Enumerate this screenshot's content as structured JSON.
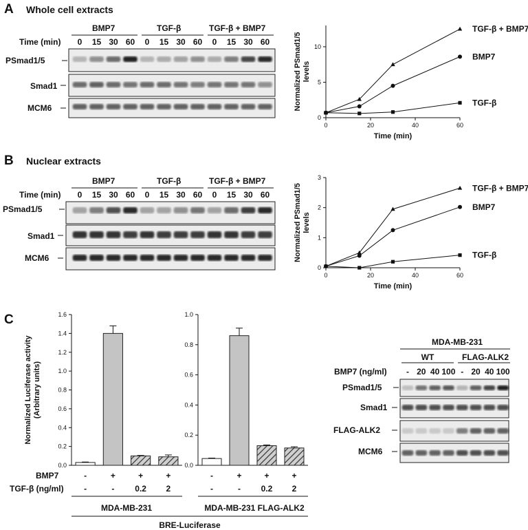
{
  "panel_a": {
    "letter": "A",
    "title": "Whole cell extracts",
    "time_label": "Time (min)",
    "groups": [
      "BMP7",
      "TGF-β",
      "TGF-β + BMP7"
    ],
    "lanes": [
      "0",
      "15",
      "30",
      "60",
      "0",
      "15",
      "30",
      "60",
      "0",
      "15",
      "30",
      "60"
    ],
    "rows": [
      "PSmad1/5",
      "Smad1",
      "MCM6"
    ]
  },
  "panel_b": {
    "letter": "B",
    "title": "Nuclear extracts",
    "time_label": "Time (min)",
    "groups": [
      "BMP7",
      "TGF-β",
      "TGF-β + BMP7"
    ],
    "lanes": [
      "0",
      "15",
      "30",
      "60",
      "0",
      "15",
      "30",
      "60",
      "0",
      "15",
      "30",
      "60"
    ],
    "rows": [
      "PSmad1/5",
      "Smad1",
      "MCM6"
    ]
  },
  "panel_c": {
    "letter": "C",
    "blot": {
      "cell_line": "MDA-MB-231",
      "wt_label": "WT",
      "flag_label": "FLAG-ALK2",
      "dose_label": "BMP7 (ng/ml)",
      "lanes": [
        "-",
        "20",
        "40",
        "100",
        "-",
        "20",
        "40",
        "100"
      ],
      "rows": [
        "PSmad1/5",
        "Smad1",
        "FLAG-ALK2",
        "MCM6"
      ]
    },
    "table": {
      "bmp7_label": "BMP7",
      "tgf_label": "TGF-β (ng/ml)",
      "bmp7_values": [
        "-",
        "+",
        "+",
        "+"
      ],
      "tgf_values": [
        "-",
        "-",
        "0.2",
        "2"
      ],
      "group1": "MDA-MB-231",
      "group2": "MDA-MB-231 FLAG-ALK2",
      "reporter": "BRE-Luciferase"
    }
  },
  "chart_data": [
    {
      "type": "line",
      "panel": "A",
      "xlabel": "Time (min)",
      "ylabel": "Normalized PSmad1/5 levels",
      "x": [
        0,
        15,
        30,
        60
      ],
      "xlim": [
        0,
        60
      ],
      "xticks": [
        0,
        20,
        40,
        60
      ],
      "ylim": [
        0,
        13
      ],
      "yticks": [
        0,
        5,
        10
      ],
      "series": [
        {
          "name": "TGF-β + BMP7",
          "marker": "triangle",
          "values": [
            0.7,
            2.6,
            7.5,
            12.5
          ]
        },
        {
          "name": "BMP7",
          "marker": "circle",
          "values": [
            0.7,
            1.6,
            4.5,
            8.6
          ]
        },
        {
          "name": "TGF-β",
          "marker": "square",
          "values": [
            0.7,
            0.6,
            0.8,
            2.1
          ]
        }
      ]
    },
    {
      "type": "line",
      "panel": "B",
      "xlabel": "Time (min)",
      "ylabel": "Normalized PSmad1/5 levels",
      "x": [
        0,
        15,
        30,
        60
      ],
      "xlim": [
        0,
        60
      ],
      "xticks": [
        0,
        20,
        40,
        60
      ],
      "ylim": [
        0,
        3
      ],
      "yticks": [
        0,
        1,
        2,
        3
      ],
      "series": [
        {
          "name": "TGF-β + BMP7",
          "marker": "triangle",
          "values": [
            0.05,
            0.5,
            1.95,
            2.65
          ]
        },
        {
          "name": "BMP7",
          "marker": "circle",
          "values": [
            0.05,
            0.4,
            1.25,
            2.02
          ]
        },
        {
          "name": "TGF-β",
          "marker": "square",
          "values": [
            0.05,
            0.0,
            0.2,
            0.42
          ]
        }
      ]
    },
    {
      "type": "bar",
      "panel": "C1",
      "ylabel": "Normalized Luciferase activity (Arbitrary units)",
      "ylim": [
        0,
        1.6
      ],
      "yticks": [
        "0.0",
        "0.2",
        "0.4",
        "0.6",
        "0.8",
        "1.0",
        "1.2",
        "1.4",
        "1.6"
      ],
      "values": [
        0.03,
        1.4,
        0.1,
        0.09
      ],
      "errors": [
        0.005,
        0.08,
        0.005,
        0.02
      ],
      "fills": [
        "white",
        "gray",
        "hatch",
        "hatch"
      ]
    },
    {
      "type": "bar",
      "panel": "C2",
      "ylim": [
        0,
        1.0
      ],
      "yticks": [
        "0.0",
        "0.2",
        "0.4",
        "0.6",
        "0.8",
        "1.0"
      ],
      "values": [
        0.045,
        0.86,
        0.13,
        0.115
      ],
      "errors": [
        0.003,
        0.05,
        0.005,
        0.008
      ],
      "fills": [
        "white",
        "gray",
        "hatch",
        "hatch"
      ]
    }
  ]
}
